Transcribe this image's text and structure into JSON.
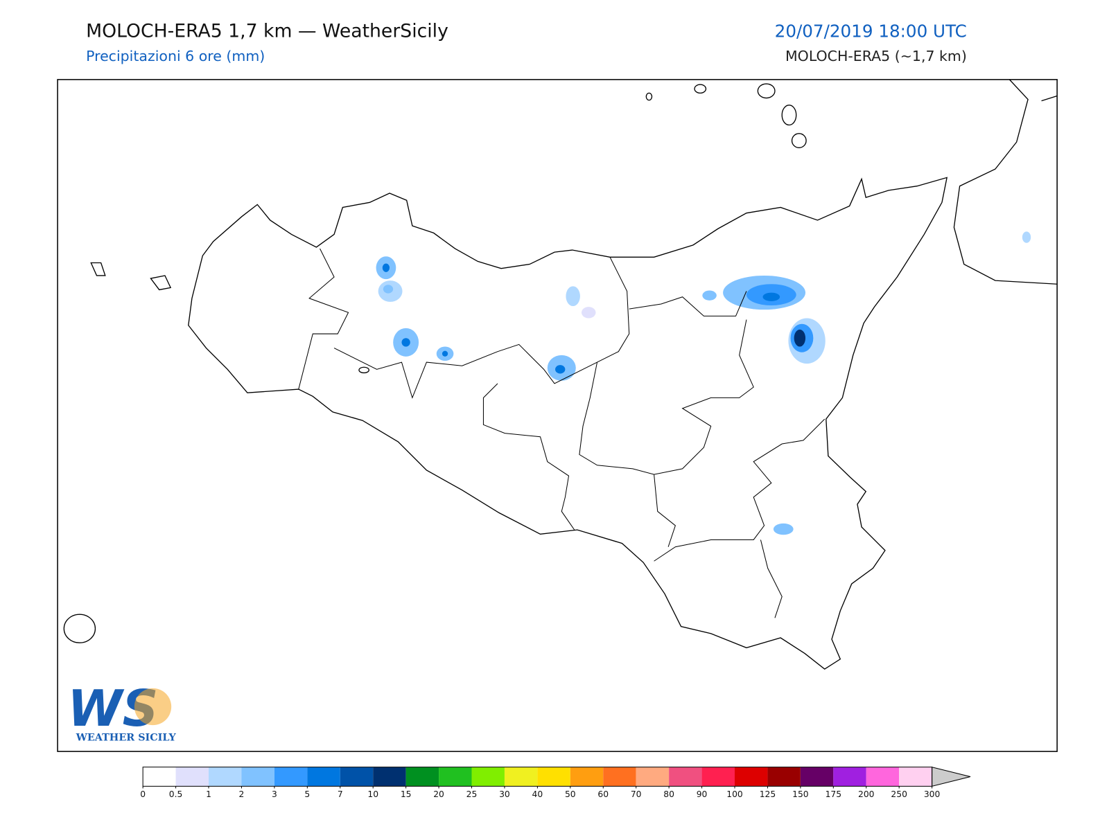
{
  "header": {
    "title": "MOLOCH-ERA5 1,7 km — WeatherSicily",
    "subtitle": "Precipitazioni 6 ore (mm)",
    "date": "20/07/2019 18:00 UTC",
    "model": "MOLOCH-ERA5 (~1,7 km)"
  },
  "logo": {
    "mark": "WS",
    "text": "WEATHER SICILY"
  },
  "colorbar": {
    "ticks": [
      0,
      0.5,
      1,
      2,
      3,
      5,
      7,
      10,
      15,
      20,
      25,
      30,
      40,
      50,
      60,
      70,
      80,
      90,
      100,
      125,
      150,
      175,
      200,
      250,
      300
    ],
    "colors": [
      "#ffffff",
      "#e0e0fc",
      "#b0d8ff",
      "#80c2ff",
      "#3399ff",
      "#0077e0",
      "#0052a8",
      "#003070",
      "#009020",
      "#20c020",
      "#80ee00",
      "#f0f020",
      "#ffe000",
      "#ff9e10",
      "#ff7020",
      "#ffaa80",
      "#f05080",
      "#ff2050",
      "#dd0000",
      "#990000",
      "#660066",
      "#a020e0",
      "#ff66dd",
      "#ffd0f0"
    ],
    "extend_color": "#cccccc"
  }
}
